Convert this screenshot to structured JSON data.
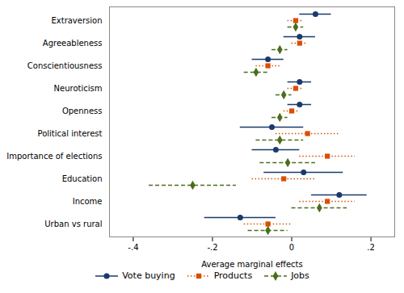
{
  "chart_data": {
    "type": "coefficient_plot",
    "categories": [
      "Extraversion",
      "Agreeableness",
      "Conscientiousness",
      "Neuroticism",
      "Openness",
      "Political interest",
      "Importance of elections",
      "Education",
      "Income",
      "Urban vs rural"
    ],
    "series": [
      {
        "name": "Vote buying",
        "color": "#1a3a6b",
        "marker": "circle",
        "line_style": "solid",
        "values": [
          0.06,
          0.02,
          -0.06,
          0.02,
          0.02,
          -0.05,
          -0.04,
          0.03,
          0.12,
          -0.13
        ],
        "ci_lo": [
          0.02,
          -0.02,
          -0.1,
          -0.01,
          -0.01,
          -0.13,
          -0.1,
          -0.07,
          0.05,
          -0.22
        ],
        "ci_hi": [
          0.1,
          0.06,
          -0.02,
          0.05,
          0.05,
          0.03,
          0.02,
          0.13,
          0.19,
          -0.04
        ]
      },
      {
        "name": "Products",
        "color": "#d94f00",
        "marker": "square",
        "line_style": "dotted",
        "values": [
          0.01,
          0.02,
          -0.06,
          0.01,
          0.0,
          0.04,
          0.09,
          -0.02,
          0.09,
          -0.06
        ],
        "ci_lo": [
          -0.01,
          0.0,
          -0.09,
          -0.01,
          -0.02,
          -0.04,
          0.02,
          -0.1,
          0.02,
          -0.12
        ],
        "ci_hi": [
          0.03,
          0.04,
          -0.03,
          0.03,
          0.02,
          0.12,
          0.16,
          0.06,
          0.16,
          0.0
        ]
      },
      {
        "name": "Jobs",
        "color": "#4a6e1a",
        "marker": "diamond",
        "line_style": "dashed",
        "values": [
          0.01,
          -0.03,
          -0.09,
          -0.02,
          -0.03,
          -0.03,
          -0.01,
          -0.25,
          0.07,
          -0.06
        ],
        "ci_lo": [
          -0.01,
          -0.05,
          -0.12,
          -0.04,
          -0.05,
          -0.09,
          -0.08,
          -0.36,
          0.0,
          -0.11
        ],
        "ci_hi": [
          0.03,
          -0.01,
          -0.06,
          0.0,
          -0.01,
          0.03,
          0.06,
          -0.14,
          0.14,
          -0.01
        ]
      }
    ],
    "xlabel": "Average marginal effects",
    "xlim": [
      -0.46,
      0.26
    ],
    "xticks": [
      {
        "value": -0.4,
        "label": "-.4"
      },
      {
        "value": -0.2,
        "label": "-.2"
      },
      {
        "value": 0.0,
        "label": "0"
      },
      {
        "value": 0.2,
        "label": ".2"
      }
    ],
    "grid": false,
    "legend": "bottom"
  }
}
